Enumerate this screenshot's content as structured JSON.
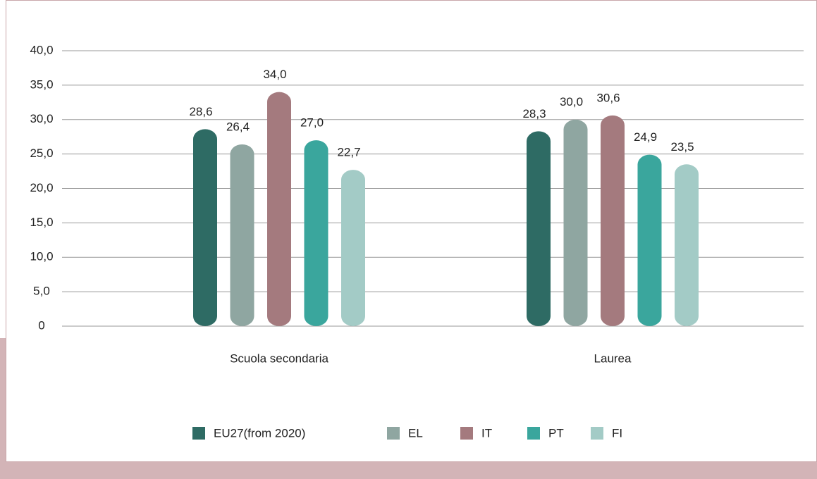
{
  "chart_data": {
    "type": "bar",
    "categories": [
      "Scuola secondaria",
      "Laurea"
    ],
    "series": [
      {
        "name": "EU27(from 2020)",
        "color": "#2e6b64",
        "values": [
          28.6,
          28.3
        ],
        "value_labels": [
          "28,6",
          "28,3"
        ]
      },
      {
        "name": "EL",
        "color": "#8fa6a1",
        "values": [
          26.4,
          30.0
        ],
        "value_labels": [
          "26,4",
          "30,0"
        ]
      },
      {
        "name": "IT",
        "color": "#a47a7e",
        "values": [
          34.0,
          30.6
        ],
        "value_labels": [
          "34,0",
          "30,6"
        ]
      },
      {
        "name": "PT",
        "color": "#3aa69d",
        "values": [
          27.0,
          24.9
        ],
        "value_labels": [
          "27,0",
          "24,9"
        ]
      },
      {
        "name": "FI",
        "color": "#a3cbc6",
        "values": [
          22.7,
          23.5
        ],
        "value_labels": [
          "22,7",
          "23,5"
        ]
      }
    ],
    "ylim": [
      0,
      40
    ],
    "yticks": [
      0,
      {
        "value": 5,
        "label": "5,0"
      },
      {
        "value": 10,
        "label": "10,0"
      },
      {
        "value": 15,
        "label": "15,0"
      },
      {
        "value": 20,
        "label": "20,0"
      },
      {
        "value": 25,
        "label": "25,0"
      },
      {
        "value": 30,
        "label": "30,0"
      },
      {
        "value": 35,
        "label": "35,0"
      },
      {
        "value": 40,
        "label": "40,0"
      }
    ],
    "grid": true,
    "legend": "bottom"
  }
}
